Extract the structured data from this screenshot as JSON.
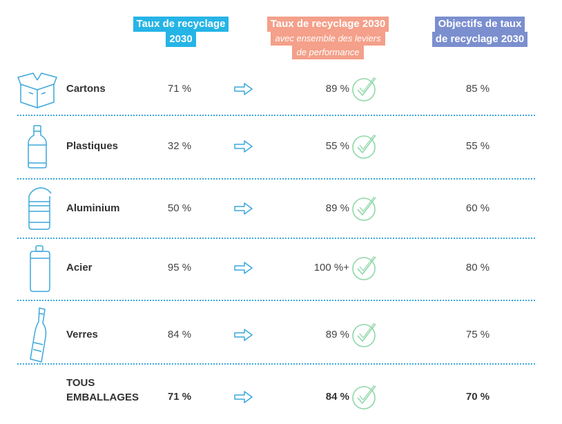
{
  "headers": {
    "col1": [
      "Taux de recyclage",
      "2030"
    ],
    "col2": [
      "Taux de recyclage 2030"
    ],
    "col2_sub": [
      "avec ensemble des leviers",
      "de performance"
    ],
    "col3": [
      "Objectifs de taux",
      "de recyclage 2030"
    ]
  },
  "rows": [
    {
      "label": "Cartons",
      "current": "71 %",
      "projected": "89 %",
      "target": "85 %",
      "icon": "box-icon"
    },
    {
      "label": "Plastiques",
      "current": "32 %",
      "projected": "55 %",
      "target": "55 %",
      "icon": "plastic-bottle-icon"
    },
    {
      "label": "Aluminium",
      "current": "50 %",
      "projected": "89 %",
      "target": "60 %",
      "icon": "aluminium-can-icon"
    },
    {
      "label": "Acier",
      "current": "95 %",
      "projected": "100 %+",
      "target": "80 %",
      "icon": "steel-can-icon"
    },
    {
      "label": "Verres",
      "current": "84 %",
      "projected": "89 %",
      "target": "75 %",
      "icon": "glass-bottle-icon"
    }
  ],
  "total": {
    "label": [
      "TOUS",
      "EMBALLAGES"
    ],
    "current": "71 %",
    "projected": "84 %",
    "target": "70 %"
  },
  "colors": {
    "header1": "#25b4e6",
    "header2": "#f4a08a",
    "header3": "#7b8fcf",
    "icon": "#3aa7dc",
    "check": "#8fd7a8"
  }
}
